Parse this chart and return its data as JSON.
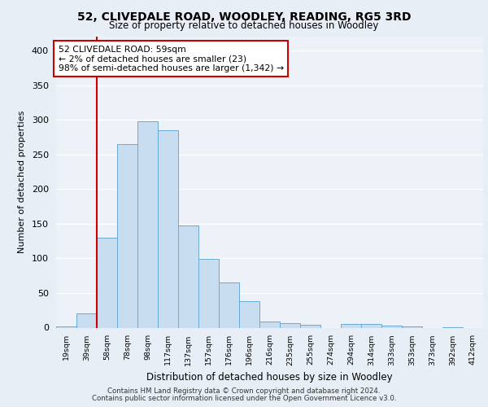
{
  "title": "52, CLIVEDALE ROAD, WOODLEY, READING, RG5 3RD",
  "subtitle": "Size of property relative to detached houses in Woodley",
  "xlabel": "Distribution of detached houses by size in Woodley",
  "ylabel": "Number of detached properties",
  "bar_color": "#c9ddf0",
  "bar_edge_color": "#6aaad4",
  "background_color": "#e8eef5",
  "plot_bg_color": "#edf2f8",
  "grid_color": "#ffffff",
  "categories": [
    "19sqm",
    "39sqm",
    "58sqm",
    "78sqm",
    "98sqm",
    "117sqm",
    "137sqm",
    "157sqm",
    "176sqm",
    "196sqm",
    "216sqm",
    "235sqm",
    "255sqm",
    "274sqm",
    "294sqm",
    "314sqm",
    "333sqm",
    "353sqm",
    "373sqm",
    "392sqm",
    "412sqm"
  ],
  "values": [
    2,
    21,
    130,
    265,
    298,
    285,
    147,
    99,
    65,
    38,
    9,
    6,
    4,
    0,
    5,
    5,
    3,
    2,
    0,
    1,
    0
  ],
  "vline_index": 2,
  "vline_color": "#cc0000",
  "annotation_text": "52 CLIVEDALE ROAD: 59sqm\n← 2% of detached houses are smaller (23)\n98% of semi-detached houses are larger (1,342) →",
  "annotation_box_color": "#ffffff",
  "annotation_box_edge_color": "#cc0000",
  "ylim": [
    0,
    420
  ],
  "yticks": [
    0,
    50,
    100,
    150,
    200,
    250,
    300,
    350,
    400
  ],
  "footer_line1": "Contains HM Land Registry data © Crown copyright and database right 2024.",
  "footer_line2": "Contains public sector information licensed under the Open Government Licence v3.0."
}
